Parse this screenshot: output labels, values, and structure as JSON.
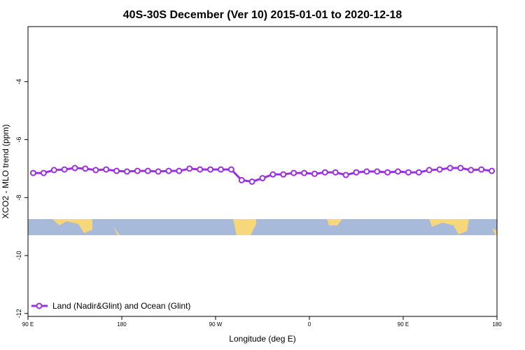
{
  "chart_data": {
    "type": "line",
    "title": "40S-30S December (Ver 10)   2015-01-01 to 2020-12-18",
    "x_label": "Longitude (deg E)",
    "y_label": "XCO2 - MLO trend (ppm)",
    "x": [
      95,
      105,
      115,
      125,
      135,
      145,
      155,
      165,
      175,
      185,
      195,
      205,
      215,
      225,
      235,
      245,
      255,
      265,
      275,
      285,
      295,
      305,
      315,
      325,
      335,
      345,
      355,
      365,
      375,
      385,
      395,
      405,
      415,
      425,
      435,
      445,
      455,
      465,
      475,
      485,
      495,
      505,
      515,
      525,
      535
    ],
    "series": [
      {
        "name": "Land (Nadir&Glint) and Ocean (Glint)",
        "color": "#9b30e0",
        "values": [
          -7.15,
          -7.15,
          -7.05,
          -7.03,
          -6.98,
          -7.0,
          -7.05,
          -7.03,
          -7.08,
          -7.1,
          -7.08,
          -7.08,
          -7.1,
          -7.08,
          -7.08,
          -7.0,
          -7.03,
          -7.03,
          -7.03,
          -7.03,
          -7.4,
          -7.45,
          -7.33,
          -7.2,
          -7.2,
          -7.15,
          -7.15,
          -7.18,
          -7.13,
          -7.13,
          -7.22,
          -7.13,
          -7.1,
          -7.1,
          -7.13,
          -7.1,
          -7.13,
          -7.13,
          -7.05,
          -7.03,
          -6.98,
          -6.98,
          -7.05,
          -7.03,
          -7.08
        ]
      }
    ],
    "xlim": [
      90,
      540
    ],
    "xticks": [
      {
        "value": 90,
        "label": "90 E"
      },
      {
        "value": 180,
        "label": "180"
      },
      {
        "value": 270,
        "label": "90 W"
      },
      {
        "value": 360,
        "label": "0"
      },
      {
        "value": 450,
        "label": "90 E"
      },
      {
        "value": 540,
        "label": "180"
      }
    ],
    "ylim": [
      -12.1,
      -2.1
    ],
    "yticks": [
      -12,
      -10,
      -8,
      -6,
      -4
    ],
    "legend": "bottom-left"
  }
}
